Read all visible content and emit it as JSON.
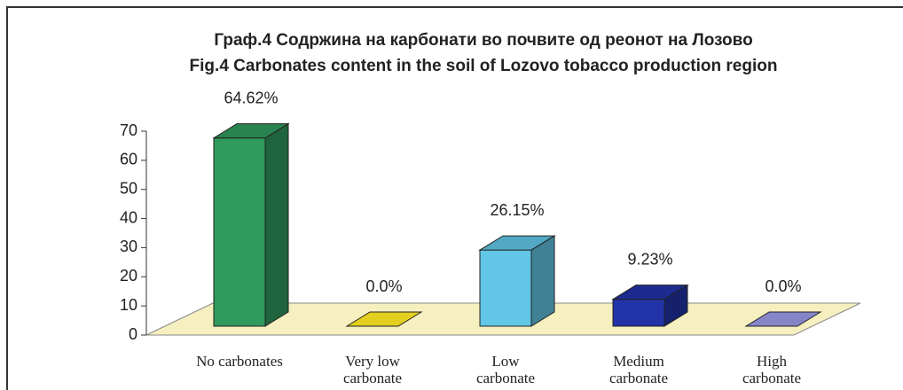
{
  "chart_data": {
    "type": "bar3d",
    "title": "Граф.4 Содржина на карбонати во почвите од реонот на Лозово",
    "subtitle": "Fig.4 Carbonates content in the soil of Lozovo  tobacco production region",
    "categories": [
      "No carbonates",
      "Very low carbonate",
      "Low carbonate",
      "Medium carbonate",
      "High carbonate"
    ],
    "values": [
      64.62,
      0,
      26.15,
      9.23,
      0
    ],
    "value_labels": [
      "64.62%",
      "0.0%",
      "26.15%",
      "9.23%",
      "0.0%"
    ],
    "colors": [
      "#2f9a5c",
      "#e2cf1e",
      "#62c6e6",
      "#2233a8",
      "#8585c8"
    ],
    "ylim": [
      0,
      70
    ],
    "yticks": [
      0,
      10,
      20,
      30,
      40,
      50,
      60,
      70
    ]
  }
}
